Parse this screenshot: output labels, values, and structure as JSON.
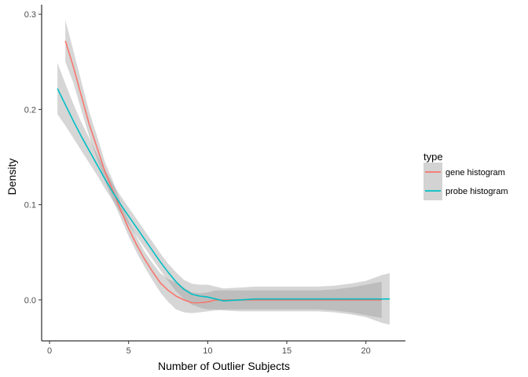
{
  "chart_data": {
    "type": "line",
    "title": "",
    "xlabel": "Number of Outlier Subjects",
    "ylabel": "Density",
    "xlim": [
      -0.5,
      22.5
    ],
    "ylim": [
      -0.043,
      0.31
    ],
    "x_ticks": [
      0,
      5,
      10,
      15,
      20
    ],
    "y_ticks": [
      0.0,
      0.1,
      0.2,
      0.3
    ],
    "x_tick_labels": [
      "0",
      "5",
      "10",
      "15",
      "20"
    ],
    "y_tick_labels": [
      "0.0",
      "0.1",
      "0.2",
      "0.3"
    ],
    "grid": false,
    "legend": {
      "title": "type",
      "position": "right"
    },
    "series": [
      {
        "name": "gene histogram",
        "color": "#F8766D",
        "x": [
          1,
          1.5,
          2,
          2.5,
          3,
          3.5,
          4,
          4.5,
          5,
          5.5,
          6,
          6.5,
          7,
          7.5,
          8,
          8.5,
          9,
          9.5,
          10,
          10.5,
          11,
          12,
          13,
          14,
          15,
          16,
          17,
          18,
          19,
          20,
          21
        ],
        "y": [
          0.272,
          0.245,
          0.215,
          0.185,
          0.16,
          0.135,
          0.115,
          0.094,
          0.075,
          0.058,
          0.043,
          0.03,
          0.018,
          0.01,
          0.004,
          0.0,
          -0.003,
          -0.003,
          -0.002,
          0.0,
          0.0,
          0.0,
          0.0,
          0.0,
          0.0,
          0.0,
          0.0,
          0.0,
          0.0,
          0.0,
          0.0
        ],
        "ci_lower": [
          0.25,
          0.228,
          0.2,
          0.172,
          0.148,
          0.125,
          0.105,
          0.086,
          0.067,
          0.05,
          0.035,
          0.021,
          0.008,
          -0.002,
          -0.01,
          -0.013,
          -0.014,
          -0.013,
          -0.012,
          -0.011,
          -0.01,
          -0.01,
          -0.01,
          -0.01,
          -0.01,
          -0.01,
          -0.01,
          -0.011,
          -0.013,
          -0.016,
          -0.019
        ],
        "ci_upper": [
          0.294,
          0.262,
          0.23,
          0.198,
          0.172,
          0.145,
          0.125,
          0.102,
          0.083,
          0.066,
          0.051,
          0.039,
          0.028,
          0.022,
          0.018,
          0.013,
          0.008,
          0.007,
          0.008,
          0.01,
          0.01,
          0.01,
          0.01,
          0.01,
          0.01,
          0.01,
          0.01,
          0.011,
          0.013,
          0.016,
          0.019
        ]
      },
      {
        "name": "probe histogram",
        "color": "#00BFC4",
        "x": [
          0.5,
          1,
          1.5,
          2,
          2.5,
          3,
          3.5,
          4,
          4.5,
          5,
          5.5,
          6,
          6.5,
          7,
          7.5,
          8,
          8.5,
          9,
          9.5,
          10,
          10.5,
          11,
          12,
          13,
          14,
          15,
          16,
          17,
          18,
          19,
          20,
          21,
          21.5
        ],
        "y": [
          0.222,
          0.205,
          0.188,
          0.172,
          0.157,
          0.142,
          0.127,
          0.113,
          0.1,
          0.088,
          0.076,
          0.064,
          0.052,
          0.04,
          0.029,
          0.019,
          0.011,
          0.006,
          0.004,
          0.003,
          0.001,
          -0.001,
          0.0,
          0.001,
          0.001,
          0.001,
          0.001,
          0.001,
          0.001,
          0.001,
          0.001,
          0.001,
          0.001
        ],
        "ci_lower": [
          0.195,
          0.183,
          0.17,
          0.157,
          0.144,
          0.131,
          0.117,
          0.104,
          0.091,
          0.079,
          0.067,
          0.055,
          0.043,
          0.031,
          0.02,
          0.009,
          0.001,
          -0.005,
          -0.008,
          -0.01,
          -0.01,
          -0.011,
          -0.012,
          -0.012,
          -0.012,
          -0.012,
          -0.012,
          -0.012,
          -0.013,
          -0.015,
          -0.018,
          -0.024,
          -0.026
        ],
        "ci_upper": [
          0.249,
          0.227,
          0.206,
          0.187,
          0.17,
          0.153,
          0.137,
          0.122,
          0.109,
          0.097,
          0.085,
          0.073,
          0.061,
          0.049,
          0.038,
          0.029,
          0.021,
          0.017,
          0.016,
          0.016,
          0.014,
          0.012,
          0.013,
          0.014,
          0.014,
          0.014,
          0.014,
          0.014,
          0.015,
          0.017,
          0.02,
          0.026,
          0.028
        ]
      }
    ]
  }
}
